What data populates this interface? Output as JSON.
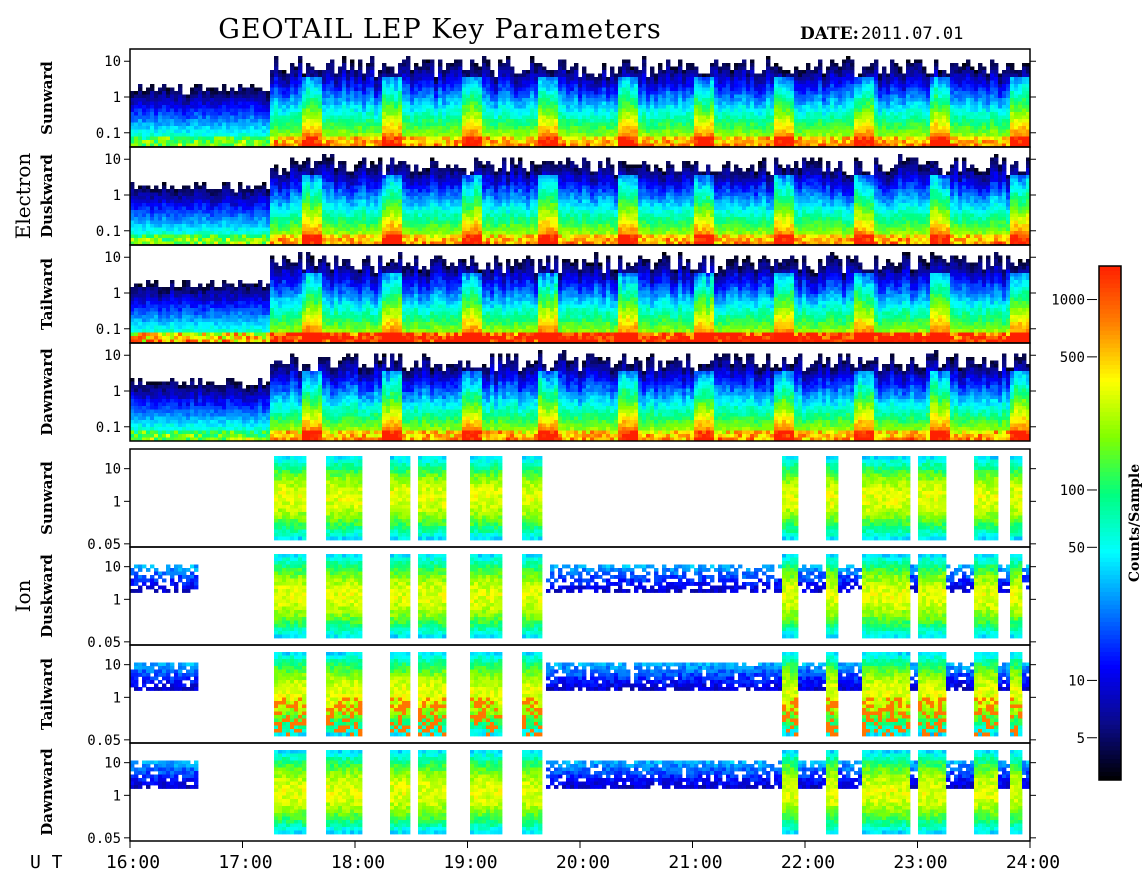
{
  "chart_data": {
    "type": "heatmap",
    "title": "GEOTAIL LEP Key Parameters",
    "date_label": "DATE:",
    "date_value": "2011.07.01",
    "x_axis": {
      "label": "U T",
      "range": [
        "16:00",
        "24:00"
      ],
      "ticks": [
        "16:00",
        "17:00",
        "18:00",
        "19:00",
        "20:00",
        "21:00",
        "22:00",
        "23:00",
        "24:00"
      ]
    },
    "colorbar": {
      "label": "Counts/Sample",
      "scale": "log",
      "range": [
        3,
        1500
      ],
      "ticks": [
        "1000",
        "500",
        "100",
        "50",
        "10",
        "5"
      ],
      "tick_values": [
        1000,
        500,
        100,
        50,
        10,
        5
      ],
      "colormap": [
        "#000000",
        "#0a0a8a",
        "#0000ff",
        "#0080ff",
        "#00ffff",
        "#00ff80",
        "#80ff00",
        "#ffff00",
        "#ff8000",
        "#ff2000"
      ]
    },
    "groups": [
      {
        "name": "Electron",
        "panels": [
          {
            "name": "Sunward",
            "y_scale": "log",
            "y_ticks": [
              "10",
              "1",
              "0.1"
            ],
            "y_tick_values": [
              10,
              1,
              0.1
            ],
            "y_range": [
              0.04,
              22
            ]
          },
          {
            "name": "Duskward",
            "y_scale": "log",
            "y_ticks": [
              "10",
              "1",
              "0.1"
            ],
            "y_tick_values": [
              10,
              1,
              0.1
            ],
            "y_range": [
              0.04,
              22
            ]
          },
          {
            "name": "Tailward",
            "y_scale": "log",
            "y_ticks": [
              "10",
              "1",
              "0.1"
            ],
            "y_tick_values": [
              10,
              1,
              0.1
            ],
            "y_range": [
              0.04,
              22
            ]
          },
          {
            "name": "Dawnward",
            "y_scale": "log",
            "y_ticks": [
              "10",
              "1",
              "0.1"
            ],
            "y_tick_values": [
              10,
              1,
              0.1
            ],
            "y_range": [
              0.04,
              22
            ]
          }
        ]
      },
      {
        "name": "Ion",
        "panels": [
          {
            "name": "Sunward",
            "y_scale": "log",
            "y_ticks": [
              "10",
              "1",
              "0.05"
            ],
            "y_tick_values": [
              10,
              1,
              0.05
            ],
            "y_range": [
              0.04,
              40
            ]
          },
          {
            "name": "Duskward",
            "y_scale": "log",
            "y_ticks": [
              "10",
              "1",
              "0.05"
            ],
            "y_tick_values": [
              10,
              1,
              0.05
            ],
            "y_range": [
              0.04,
              40
            ]
          },
          {
            "name": "Tailward",
            "y_scale": "log",
            "y_ticks": [
              "10",
              "1",
              "0.05"
            ],
            "y_tick_values": [
              10,
              1,
              0.05
            ],
            "y_range": [
              0.04,
              40
            ]
          },
          {
            "name": "Dawnward",
            "y_scale": "log",
            "y_ticks": [
              "10",
              "1",
              "0.05"
            ],
            "y_tick_values": [
              10,
              1,
              0.05
            ],
            "y_range": [
              0.04,
              40
            ]
          }
        ]
      }
    ],
    "ion_data_intervals_ut_hours": [
      [
        17.27,
        17.55
      ],
      [
        17.75,
        18.05
      ],
      [
        18.3,
        18.5
      ],
      [
        18.55,
        18.8
      ],
      [
        19.03,
        19.3
      ],
      [
        19.5,
        19.65
      ],
      [
        21.8,
        21.93
      ],
      [
        22.2,
        22.3
      ],
      [
        22.5,
        22.93
      ],
      [
        23.0,
        23.25
      ],
      [
        23.5,
        23.72
      ],
      [
        23.83,
        23.93
      ]
    ]
  }
}
